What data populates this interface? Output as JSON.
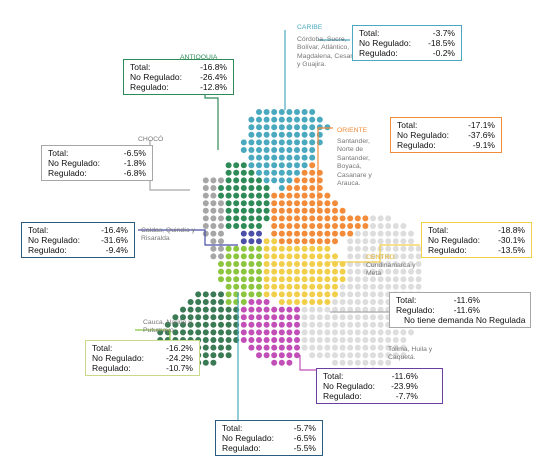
{
  "colors": {
    "caribe": "#4aa9bf",
    "antioquia": "#2e8b57",
    "choco": "#a6a6a6",
    "oriente": "#f28c3a",
    "eje": "#4b4fa8",
    "centro": "#f2cf4a",
    "sur": "#3a7a55",
    "tolima": "#c24fb8",
    "amazonia": "#dddddd",
    "lime": "#8cc63f"
  },
  "regions": {
    "antioquia": {
      "title": "ANTIOQUIA",
      "total_label": "Total:",
      "total": "-16.8%",
      "noreg_label": "No Regulado:",
      "noreg": "-26.4%",
      "reg_label": "Regulado:",
      "reg": "-12.8%"
    },
    "caribe": {
      "title": "CARIBE",
      "desc": "Córdoba, Sucre, Bolívar, Atlántico, Magdalena, Cesar y Guajira.",
      "total_label": "Total:",
      "total": "-3.7%",
      "noreg_label": "No Regulado:",
      "noreg": "-18.5%",
      "reg_label": "Regulado:",
      "reg": "-0.2%"
    },
    "choco": {
      "title": "CHOCÓ",
      "total_label": "Total:",
      "total": "-6.5%",
      "noreg_label": "No Regulado:",
      "noreg": "-1.8%",
      "reg_label": "Regulado:",
      "reg": "-6.8%"
    },
    "oriente": {
      "title": "ORIENTE",
      "desc": "Santander, Norte de Santander, Boyacá, Casanare y Arauca.",
      "total_label": "Total:",
      "total": "-17.1%",
      "noreg_label": "No Regulado:",
      "noreg": "-37.6%",
      "reg_label": "Regulado:",
      "reg": "-9.1%"
    },
    "eje": {
      "desc": "Caldas, Quindío y Risaralda",
      "total_label": "Total:",
      "total": "-16.4%",
      "noreg_label": "No Regulado:",
      "noreg": "-31.6%",
      "reg_label": "Regulado:",
      "reg": "-9.4%"
    },
    "centro": {
      "title": "CENTRO",
      "desc": "Cundinamarca y Meta",
      "total_label": "Total:",
      "total": "-18.8%",
      "noreg_label": "No Regulado:",
      "noreg": "-30.1%",
      "reg_label": "Regulado:",
      "reg": "-13.5%"
    },
    "amazonia": {
      "total_label": "Total:",
      "total": "-11.6%",
      "reg_label": "Regulado:",
      "reg": "-11.6%",
      "note": "No tiene demanda No Regulada"
    },
    "sur": {
      "desc": "Cauca, Nariño y Putumayo.",
      "total_label": "Total:",
      "total": "-16.2%",
      "noreg_label": "No Regulado:",
      "noreg": "-24.2%",
      "reg_label": "Regulado:",
      "reg": "-10.7%"
    },
    "tolima": {
      "desc": "Tolima, Huila y Caquetá.",
      "total_label": "Total:",
      "total": "-11.6%",
      "noreg_label": "No Regulado:",
      "noreg": "-23.9%",
      "reg_label": "Regulado:",
      "reg": "-7.7%"
    },
    "valle": {
      "total_label": "Total:",
      "total": "-5.7%",
      "noreg_label": "No Regulado:",
      "noreg": "-6.5%",
      "reg_label": "Regulado:",
      "reg": "-5.5%"
    }
  }
}
